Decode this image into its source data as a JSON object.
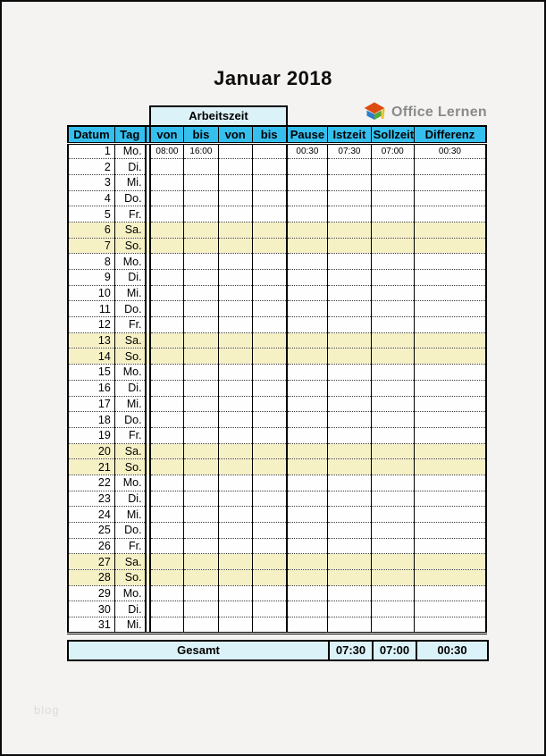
{
  "page": {
    "title": "Januar 2018",
    "watermark": "blog"
  },
  "logo": {
    "text": "Office Lernen"
  },
  "colors": {
    "header-cyan": "#35BFEE",
    "light-cyan": "#DCF2F9",
    "weekend-yellow": "#F6F0C5",
    "page-bg": "#F4F3F1",
    "logo-gray": "#8A8A8A",
    "watermark-gray": "#DBDBDB"
  },
  "table": {
    "group_header": "Arbeitszeit",
    "columns": [
      "Datum",
      "Tag",
      "von",
      "bis",
      "von",
      "bis",
      "Pause",
      "Istzeit",
      "Sollzeit",
      "Differenz"
    ],
    "rows": [
      {
        "datum": "1",
        "tag": "Mo.",
        "von1": "08:00",
        "bis1": "16:00",
        "von2": "",
        "bis2": "",
        "pause": "00:30",
        "istzeit": "07:30",
        "sollzeit": "07:00",
        "differenz": "00:30",
        "weekend": false
      },
      {
        "datum": "2",
        "tag": "Di.",
        "weekend": false
      },
      {
        "datum": "3",
        "tag": "Mi.",
        "weekend": false
      },
      {
        "datum": "4",
        "tag": "Do.",
        "weekend": false
      },
      {
        "datum": "5",
        "tag": "Fr.",
        "weekend": false
      },
      {
        "datum": "6",
        "tag": "Sa.",
        "weekend": true
      },
      {
        "datum": "7",
        "tag": "So.",
        "weekend": true
      },
      {
        "datum": "8",
        "tag": "Mo.",
        "weekend": false
      },
      {
        "datum": "9",
        "tag": "Di.",
        "weekend": false
      },
      {
        "datum": "10",
        "tag": "Mi.",
        "weekend": false
      },
      {
        "datum": "11",
        "tag": "Do.",
        "weekend": false
      },
      {
        "datum": "12",
        "tag": "Fr.",
        "weekend": false
      },
      {
        "datum": "13",
        "tag": "Sa.",
        "weekend": true
      },
      {
        "datum": "14",
        "tag": "So.",
        "weekend": true
      },
      {
        "datum": "15",
        "tag": "Mo.",
        "weekend": false
      },
      {
        "datum": "16",
        "tag": "Di.",
        "weekend": false
      },
      {
        "datum": "17",
        "tag": "Mi.",
        "weekend": false
      },
      {
        "datum": "18",
        "tag": "Do.",
        "weekend": false
      },
      {
        "datum": "19",
        "tag": "Fr.",
        "weekend": false
      },
      {
        "datum": "20",
        "tag": "Sa.",
        "weekend": true
      },
      {
        "datum": "21",
        "tag": "So.",
        "weekend": true
      },
      {
        "datum": "22",
        "tag": "Mo.",
        "weekend": false
      },
      {
        "datum": "23",
        "tag": "Di.",
        "weekend": false
      },
      {
        "datum": "24",
        "tag": "Mi.",
        "weekend": false
      },
      {
        "datum": "25",
        "tag": "Do.",
        "weekend": false
      },
      {
        "datum": "26",
        "tag": "Fr.",
        "weekend": false
      },
      {
        "datum": "27",
        "tag": "Sa.",
        "weekend": true
      },
      {
        "datum": "28",
        "tag": "So.",
        "weekend": true
      },
      {
        "datum": "29",
        "tag": "Mo.",
        "weekend": false
      },
      {
        "datum": "30",
        "tag": "Di.",
        "weekend": false
      },
      {
        "datum": "31",
        "tag": "Mi.",
        "weekend": false
      }
    ],
    "footer": {
      "label": "Gesamt",
      "istzeit": "07:30",
      "sollzeit": "07:00",
      "differenz": "00:30"
    }
  }
}
